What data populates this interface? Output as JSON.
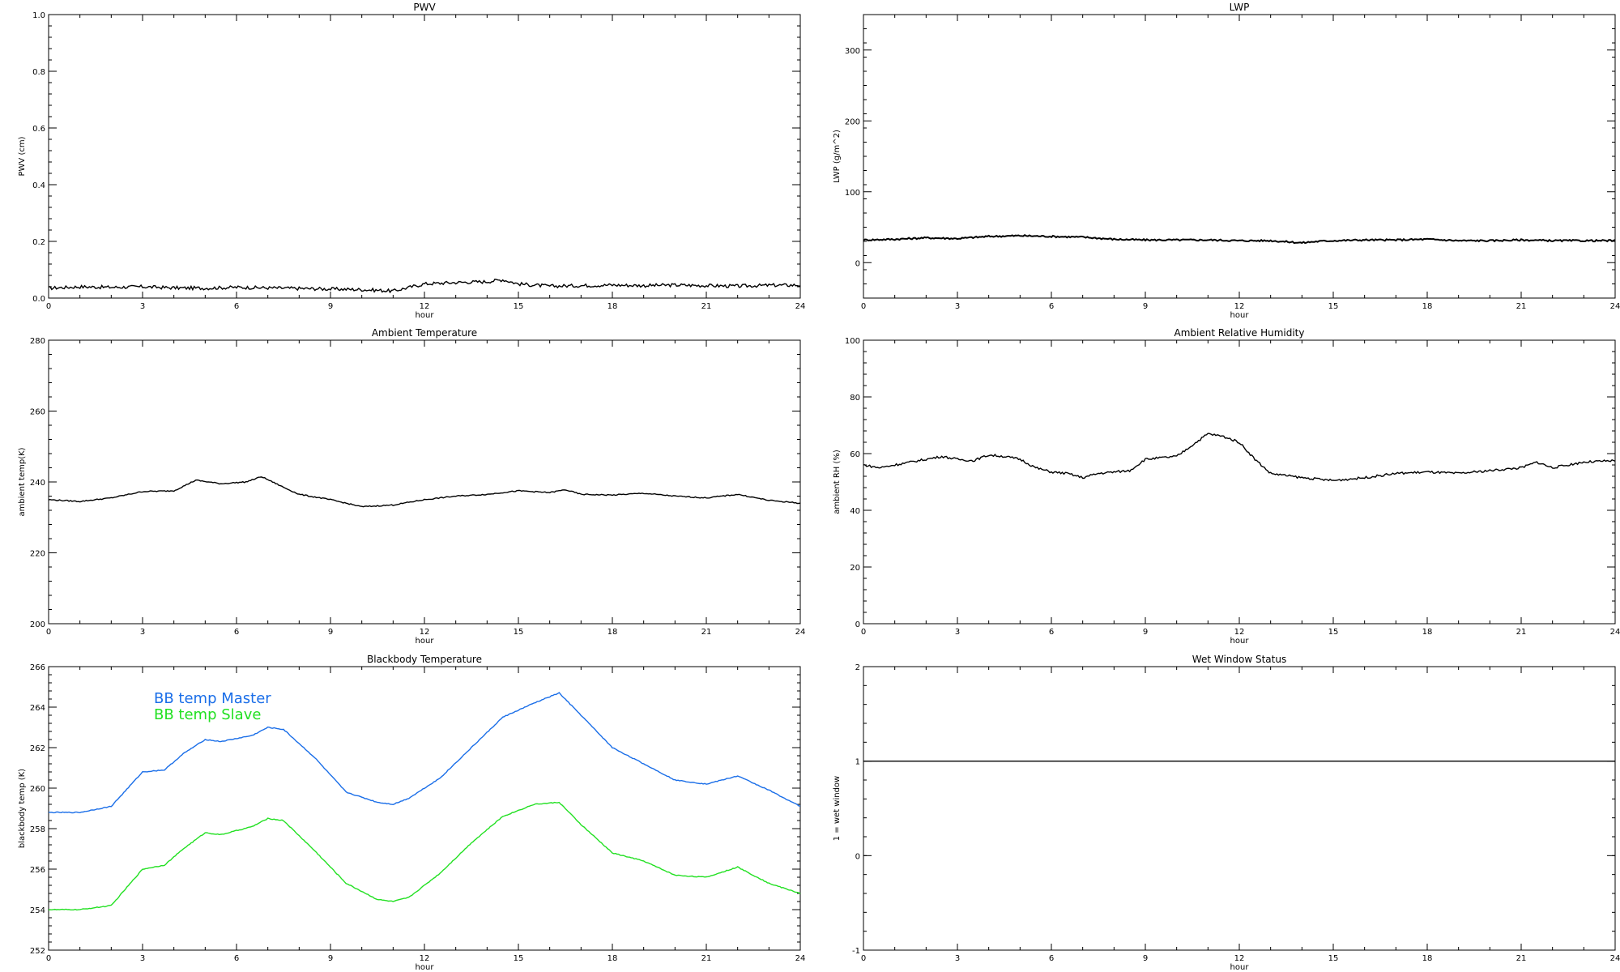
{
  "chart_data": [
    {
      "type": "line",
      "title": "PWV",
      "xlabel": "hour",
      "ylabel": "PWV (cm)",
      "xlim": [
        0,
        24
      ],
      "ylim": [
        0,
        1.0
      ],
      "xticks": [
        0,
        3,
        6,
        9,
        12,
        15,
        18,
        21,
        24
      ],
      "yticks": [
        0.0,
        0.2,
        0.4,
        0.6,
        0.8,
        1.0
      ],
      "ytick_labels": [
        "0.0",
        "0.2",
        "0.4",
        "0.6",
        "0.8",
        "1.0"
      ],
      "noise": 0.006,
      "series": [
        {
          "color": "#000000",
          "x": [
            0,
            1,
            2,
            3,
            4,
            5,
            6,
            7,
            8,
            9,
            10,
            11,
            12,
            13,
            14,
            14.5,
            15,
            16,
            17,
            18,
            19,
            20,
            21,
            22,
            23,
            24
          ],
          "y": [
            0.035,
            0.04,
            0.038,
            0.04,
            0.036,
            0.035,
            0.038,
            0.036,
            0.034,
            0.032,
            0.03,
            0.025,
            0.05,
            0.055,
            0.058,
            0.065,
            0.05,
            0.042,
            0.044,
            0.046,
            0.044,
            0.046,
            0.044,
            0.042,
            0.045,
            0.046
          ]
        }
      ]
    },
    {
      "type": "line",
      "title": "LWP",
      "xlabel": "hour",
      "ylabel": "LWP (g/m^2)",
      "xlim": [
        0,
        24
      ],
      "ylim": [
        -50,
        350
      ],
      "xticks": [
        0,
        3,
        6,
        9,
        12,
        15,
        18,
        21,
        24
      ],
      "yticks": [
        0,
        100,
        200,
        300
      ],
      "ytick_labels": [
        "0",
        "100",
        "200",
        "300"
      ],
      "noise": 1.2,
      "series": [
        {
          "color": "#000000",
          "x": [
            0,
            1,
            2,
            3,
            4,
            5,
            6,
            7,
            8,
            9,
            10,
            11,
            12,
            13,
            14,
            14.5,
            15,
            16,
            17,
            18,
            19,
            20,
            21,
            22,
            23,
            24
          ],
          "y": [
            32,
            33,
            35,
            34,
            37,
            38,
            37,
            36,
            33,
            32,
            32,
            32,
            31,
            31,
            28,
            30,
            31,
            32,
            32,
            33,
            31,
            31,
            32,
            31,
            31,
            31
          ]
        }
      ]
    },
    {
      "type": "line",
      "title": "Ambient Temperature",
      "xlabel": "hour",
      "ylabel": "ambient temp(K)",
      "xlim": [
        0,
        24
      ],
      "ylim": [
        200,
        280
      ],
      "xticks": [
        0,
        3,
        6,
        9,
        12,
        15,
        18,
        21,
        24
      ],
      "yticks": [
        200,
        220,
        240,
        260,
        280
      ],
      "ytick_labels": [
        "200",
        "220",
        "240",
        "260",
        "280"
      ],
      "noise": 0.15,
      "series": [
        {
          "color": "#000000",
          "x": [
            0,
            1,
            2,
            3,
            4,
            4.7,
            5.5,
            6.3,
            6.8,
            7.5,
            8,
            9,
            10,
            11,
            12,
            13,
            14,
            15,
            16,
            16.5,
            17,
            18,
            19,
            20,
            21,
            22,
            23,
            24
          ],
          "y": [
            235,
            234.5,
            235.5,
            237.3,
            237.5,
            240.5,
            239.5,
            240,
            241.5,
            238.5,
            236.5,
            235,
            233,
            233.5,
            235,
            236,
            236.5,
            237.5,
            237,
            237.8,
            236.5,
            236.3,
            236.8,
            236,
            235.5,
            236.5,
            234.8,
            234
          ]
        }
      ]
    },
    {
      "type": "line",
      "title": "Ambient Relative Humidity",
      "xlabel": "hour",
      "ylabel": "ambient RH (%)",
      "xlim": [
        0,
        24
      ],
      "ylim": [
        0,
        100
      ],
      "xticks": [
        0,
        3,
        6,
        9,
        12,
        15,
        18,
        21,
        24
      ],
      "yticks": [
        0,
        20,
        40,
        60,
        80,
        100
      ],
      "ytick_labels": [
        "0",
        "20",
        "40",
        "60",
        "80",
        "100"
      ],
      "noise": 0.4,
      "series": [
        {
          "color": "#000000",
          "x": [
            0,
            0.5,
            1,
            2,
            2.5,
            3,
            3.5,
            4,
            4.5,
            5,
            5.5,
            6,
            6.5,
            7,
            7.5,
            8,
            8.5,
            9,
            9.5,
            10,
            10.5,
            11,
            11.5,
            12,
            12.5,
            13,
            14,
            15,
            16,
            17,
            18,
            19,
            20,
            21,
            21.5,
            22,
            23,
            24
          ],
          "y": [
            56,
            55,
            56,
            58,
            59,
            58,
            57.5,
            59.5,
            59,
            58,
            55,
            53.5,
            53,
            51.5,
            53,
            53.5,
            54,
            58,
            58.5,
            59,
            63,
            67,
            66,
            64,
            58,
            53,
            51.5,
            50.5,
            51.5,
            53,
            53.5,
            53,
            54,
            55,
            57,
            55,
            57,
            57.5
          ]
        }
      ]
    },
    {
      "type": "line",
      "title": "Blackbody Temperature",
      "xlabel": "hour",
      "ylabel": "blackbody temp (K)",
      "xlim": [
        0,
        24
      ],
      "ylim": [
        252,
        266
      ],
      "xticks": [
        0,
        3,
        6,
        9,
        12,
        15,
        18,
        21,
        24
      ],
      "yticks": [
        252,
        254,
        256,
        258,
        260,
        262,
        264,
        266
      ],
      "ytick_labels": [
        "252",
        "254",
        "256",
        "258",
        "260",
        "262",
        "264",
        "266"
      ],
      "noise": 0.02,
      "legend": [
        {
          "label": "BB temp Master",
          "color": "#1a6ee8"
        },
        {
          "label": "BB temp Slave",
          "color": "#22e022"
        }
      ],
      "series": [
        {
          "name": "BB temp Master",
          "color": "#1a6ee8",
          "x": [
            0,
            1,
            2,
            3,
            3.7,
            4.3,
            5,
            5.5,
            6.5,
            7,
            7.5,
            8.5,
            9.5,
            10.5,
            11,
            11.5,
            12.5,
            13.5,
            14.5,
            15.5,
            16.3,
            17,
            18,
            19,
            20,
            21,
            22,
            23,
            24
          ],
          "y": [
            258.8,
            258.8,
            259.1,
            260.8,
            260.9,
            261.7,
            262.4,
            262.3,
            262.6,
            263,
            262.9,
            261.5,
            259.8,
            259.3,
            259.2,
            259.5,
            260.5,
            262,
            263.5,
            264.2,
            264.7,
            263.6,
            262,
            261.2,
            260.4,
            260.2,
            260.6,
            259.9,
            259.1
          ]
        },
        {
          "name": "BB temp Slave",
          "color": "#22e022",
          "x": [
            0,
            1,
            2,
            3,
            3.7,
            4.3,
            5,
            5.5,
            6.5,
            7,
            7.5,
            8.5,
            9.5,
            10.5,
            11,
            11.5,
            12.5,
            13.5,
            14.5,
            15.5,
            16.3,
            17,
            18,
            19,
            20,
            21,
            22,
            23,
            24
          ],
          "y": [
            254,
            254,
            254.2,
            256,
            256.2,
            257,
            257.8,
            257.7,
            258.1,
            258.5,
            258.4,
            256.9,
            255.3,
            254.5,
            254.4,
            254.6,
            255.8,
            257.3,
            258.6,
            259.2,
            259.3,
            258.2,
            256.8,
            256.4,
            255.7,
            255.6,
            256.1,
            255.3,
            254.8
          ]
        }
      ]
    },
    {
      "type": "line",
      "title": "Wet Window Status",
      "xlabel": "hour",
      "ylabel": "1 = wet window",
      "xlim": [
        0,
        24
      ],
      "ylim": [
        -1,
        2
      ],
      "xticks": [
        0,
        3,
        6,
        9,
        12,
        15,
        18,
        21,
        24
      ],
      "yticks": [
        -1,
        0,
        1,
        2
      ],
      "ytick_labels": [
        "-1",
        "0",
        "1",
        "2"
      ],
      "noise": 0,
      "series": [
        {
          "color": "#000000",
          "x": [
            0,
            24
          ],
          "y": [
            1,
            1
          ]
        }
      ]
    }
  ]
}
